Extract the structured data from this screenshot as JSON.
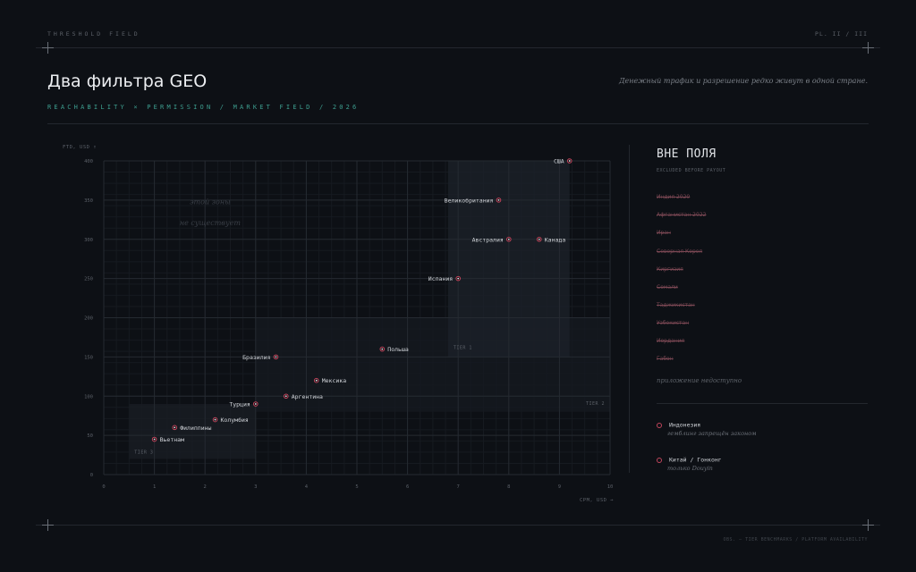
{
  "header": {
    "left_tag": "THRESHOLD FIELD",
    "page_tag": "PL. II / III",
    "title": "Два фильтра GEO",
    "subtitle": "REACHABILITY × PERMISSION / MARKET FIELD / 2026",
    "tagline": "Денежный трафик и разрешение редко живут в одной стране."
  },
  "chart_data": {
    "type": "scatter",
    "xlabel": "CPM, USD →",
    "ylabel": "FTD, USD ↑",
    "xlim": [
      0,
      10
    ],
    "ylim": [
      0,
      400
    ],
    "x_ticks": [
      "0",
      "1",
      "2",
      "3",
      "4",
      "5",
      "6",
      "7",
      "8",
      "9",
      "10"
    ],
    "y_ticks": [
      "0",
      "50",
      "100",
      "150",
      "200",
      "250",
      "300",
      "350",
      "400"
    ],
    "grid": true,
    "points": [
      {
        "label": "США",
        "x": 9.2,
        "y": 400
      },
      {
        "label": "Великобритания",
        "x": 7.8,
        "y": 350
      },
      {
        "label": "Австралия",
        "x": 8.0,
        "y": 300
      },
      {
        "label": "Канада",
        "x": 8.6,
        "y": 300
      },
      {
        "label": "Испания",
        "x": 7.0,
        "y": 250
      },
      {
        "label": "Польша",
        "x": 5.5,
        "y": 160
      },
      {
        "label": "Бразилия",
        "x": 3.4,
        "y": 150
      },
      {
        "label": "Мексика",
        "x": 4.2,
        "y": 120
      },
      {
        "label": "Аргентина",
        "x": 3.6,
        "y": 100
      },
      {
        "label": "Турция",
        "x": 3.0,
        "y": 90
      },
      {
        "label": "Колумбия",
        "x": 2.2,
        "y": 70
      },
      {
        "label": "Филиппины",
        "x": 1.4,
        "y": 60
      },
      {
        "label": "Вьетнам",
        "x": 1.0,
        "y": 45
      }
    ],
    "tiers": [
      {
        "label": "TIER 3",
        "x": [
          0.5,
          3.0
        ],
        "y": [
          20,
          90
        ]
      },
      {
        "label": "TIER 2",
        "x": [
          3.0,
          10.0
        ],
        "y": [
          80,
          200
        ]
      },
      {
        "label": "TIER 1",
        "x": [
          6.8,
          9.2
        ],
        "y": [
          150,
          400
        ]
      }
    ],
    "annotation": [
      "этой зоны",
      "не существует"
    ]
  },
  "side_panel": {
    "title": "ВНЕ ПОЛЯ",
    "subtitle": "EXCLUDED BEFORE PAYOUT",
    "excluded": [
      "Индия 2020",
      "Афганистан 2022",
      "Иран",
      "Северная Корея",
      "Киргизия",
      "Сомали",
      "Таджикистан",
      "Узбекистан",
      "Иордания",
      "Габон"
    ],
    "note": "приложение недоступно",
    "special": [
      {
        "name": "Индонезия",
        "note": "гемблинг запрещён законом"
      },
      {
        "name": "Китай / Гонконг",
        "note": "только Douyin"
      }
    ]
  },
  "footer": "OBS. — TIER BENCHMARKS / PLATFORM AVAILABILITY",
  "colors": {
    "bg": "#0d1015",
    "accent": "#3d9e8f",
    "excluded": "#7a4753",
    "point_ring": "#c2455c"
  }
}
